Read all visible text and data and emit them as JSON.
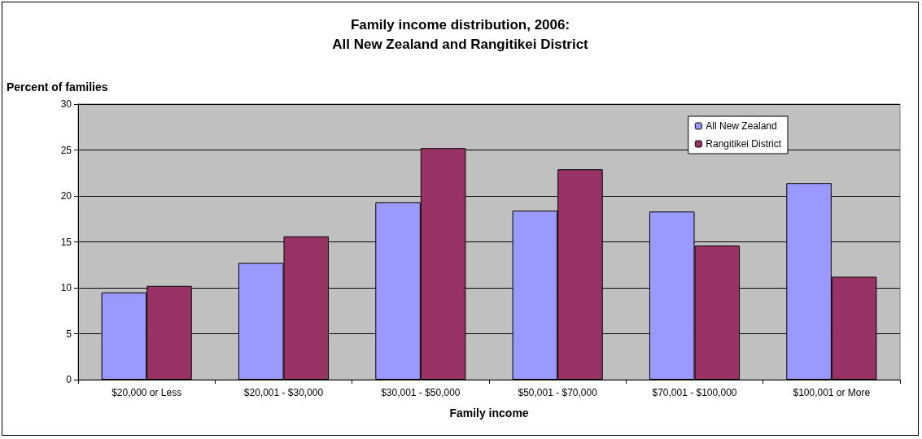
{
  "chart_data": {
    "type": "bar",
    "title": "Family income distribution, 2006:\nAll New Zealand and Rangitikei District",
    "ylabel": "Percent of families",
    "xlabel": "Family income",
    "categories": [
      "$20,000 or Less",
      "$20,001 - $30,000",
      "$30,001 - $50,000",
      "$50,001 - $70,000",
      "$70,001 - $100,000",
      "$100,001 or More"
    ],
    "series": [
      {
        "name": "All New Zealand",
        "color": "#9999ff",
        "values": [
          9.5,
          12.7,
          19.3,
          18.4,
          18.3,
          21.4
        ]
      },
      {
        "name": "Rangitikei District",
        "color": "#993366",
        "values": [
          10.2,
          15.6,
          25.2,
          22.9,
          14.6,
          11.2
        ]
      }
    ],
    "ylim": [
      0,
      30
    ],
    "yticks": [
      0,
      5,
      10,
      15,
      20,
      25,
      30
    ],
    "grid": "y",
    "legend": "top right"
  }
}
